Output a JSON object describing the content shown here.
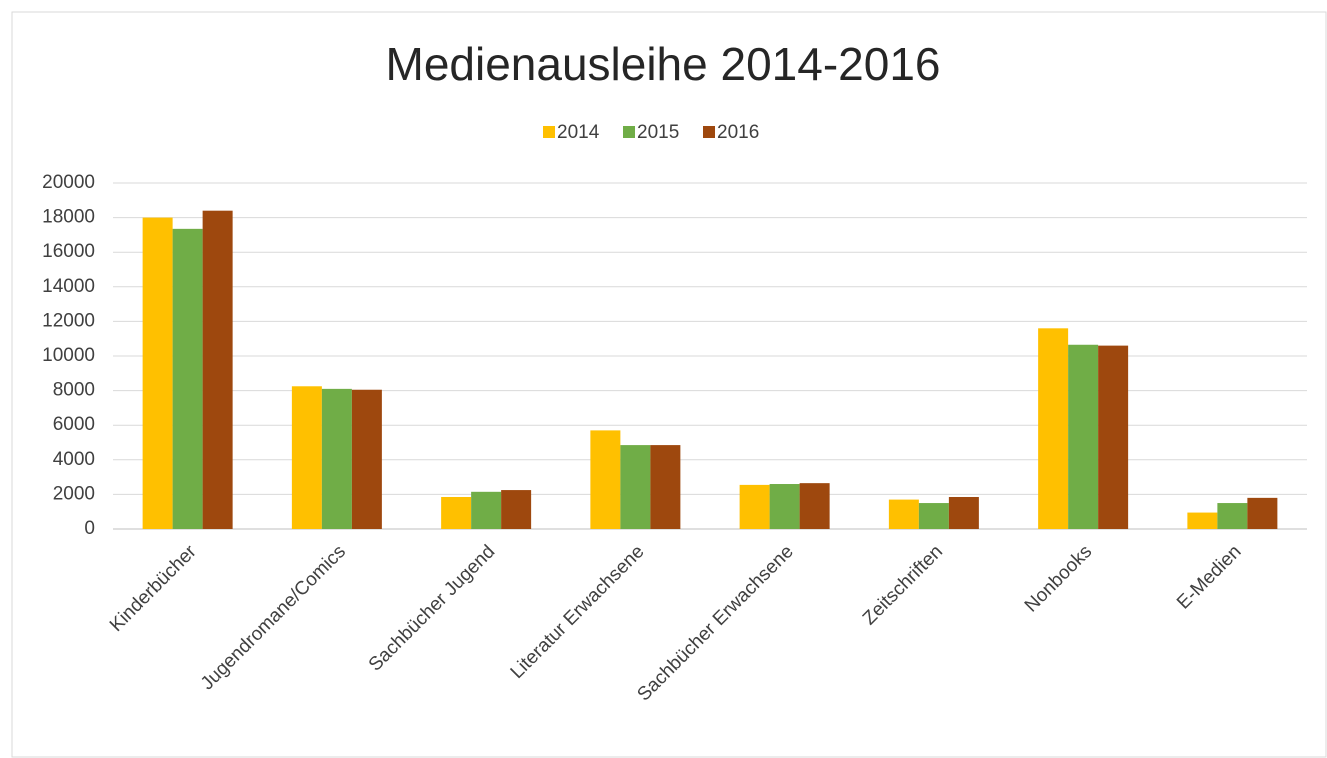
{
  "chart_data": {
    "type": "bar",
    "title": "Medienausleihe 2014-2016",
    "categories": [
      "Kinderbücher",
      "Jugendromane/Comics",
      "Sachbücher Jugend",
      "Literatur Erwachsene",
      "Sachbücher Erwachsene",
      "Zeitschriften",
      "Nonbooks",
      "E-Medien"
    ],
    "series": [
      {
        "name": "2014",
        "color": "#ffc000",
        "values": [
          18000,
          8250,
          1850,
          5700,
          2550,
          1700,
          11600,
          950
        ]
      },
      {
        "name": "2015",
        "color": "#70ad47",
        "values": [
          17350,
          8100,
          2150,
          4850,
          2600,
          1500,
          10650,
          1500
        ]
      },
      {
        "name": "2016",
        "color": "#9e480e",
        "values": [
          18400,
          8050,
          2250,
          4850,
          2650,
          1850,
          10600,
          1800
        ]
      }
    ],
    "ylim": [
      0,
      20000
    ],
    "yticks": [
      0,
      2000,
      4000,
      6000,
      8000,
      10000,
      12000,
      14000,
      16000,
      18000,
      20000
    ],
    "grid": true,
    "legend": "top"
  }
}
